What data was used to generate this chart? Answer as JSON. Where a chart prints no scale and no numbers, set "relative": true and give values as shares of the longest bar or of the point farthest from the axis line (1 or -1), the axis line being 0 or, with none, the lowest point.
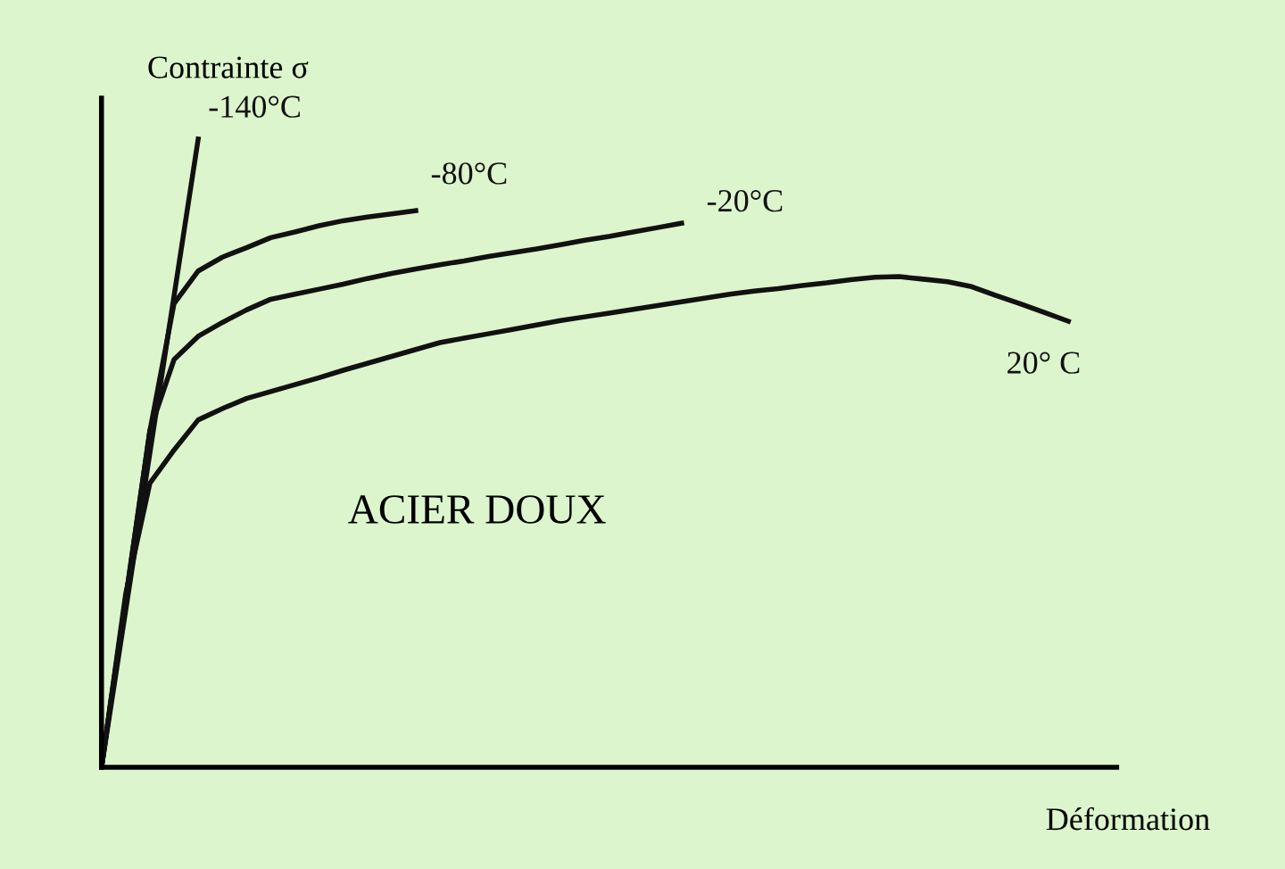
{
  "chart_data": {
    "type": "line",
    "relative": true,
    "xlabel": "Déformation",
    "ylabel": "Contrainte σ",
    "legend": false,
    "marker": "none",
    "line_style": "solid",
    "categories": [
      null,
      null,
      null,
      null,
      null,
      null,
      null,
      null,
      null,
      null,
      null,
      null,
      null,
      null,
      null,
      null,
      null,
      null,
      null,
      null,
      null,
      null,
      null,
      null,
      null,
      null,
      null,
      null,
      null,
      null,
      null,
      null,
      null,
      null,
      null,
      null,
      null,
      null,
      null,
      null,
      null
    ],
    "series": [
      {
        "name": "-140°C",
        "color": "#111111",
        "values": [
          0,
          0.25,
          0.5,
          0.75,
          1,
          null,
          null,
          null,
          null,
          null,
          null,
          null,
          null,
          null,
          null,
          null,
          null,
          null,
          null,
          null,
          null,
          null,
          null,
          null,
          null,
          null,
          null,
          null,
          null,
          null,
          null,
          null,
          null,
          null,
          null,
          null,
          null,
          null,
          null,
          null,
          null
        ]
      },
      {
        "name": "-80°C",
        "color": "#111111",
        "values": [
          0,
          0.268,
          0.535,
          0.738,
          0.79,
          0.812,
          0.827,
          0.843,
          0.852,
          0.862,
          0.87,
          0.876,
          0.881,
          0.886,
          null,
          null,
          null,
          null,
          null,
          null,
          null,
          null,
          null,
          null,
          null,
          null,
          null,
          null,
          null,
          null,
          null,
          null,
          null,
          null,
          null,
          null,
          null,
          null,
          null,
          null,
          null
        ]
      },
      {
        "name": "-20°C",
        "color": "#111111",
        "values": [
          0,
          0.268,
          0.536,
          0.649,
          0.686,
          0.708,
          0.728,
          0.745,
          0.753,
          0.761,
          0.769,
          0.778,
          0.786,
          0.793,
          0.8,
          0.806,
          0.813,
          0.819,
          0.825,
          0.832,
          0.839,
          0.845,
          0.852,
          0.859,
          0.866,
          null,
          null,
          null,
          null,
          null,
          null,
          null,
          null,
          null,
          null,
          null,
          null,
          null,
          null,
          null,
          null
        ]
      },
      {
        "name": "20° C",
        "color": "#111111",
        "values": [
          0,
          0.276,
          0.452,
          0.505,
          0.553,
          0.571,
          0.587,
          0.598,
          0.609,
          0.62,
          0.632,
          0.643,
          0.654,
          0.665,
          0.676,
          0.683,
          0.69,
          0.697,
          0.704,
          0.711,
          0.717,
          0.723,
          0.729,
          0.735,
          0.741,
          0.747,
          0.753,
          0.758,
          0.762,
          0.767,
          0.771,
          0.776,
          0.78,
          0.781,
          0.777,
          0.773,
          0.765,
          0.751,
          0.738,
          0.724,
          0.71
        ]
      }
    ],
    "annotations": [
      "ACIER DOUX"
    ]
  }
}
